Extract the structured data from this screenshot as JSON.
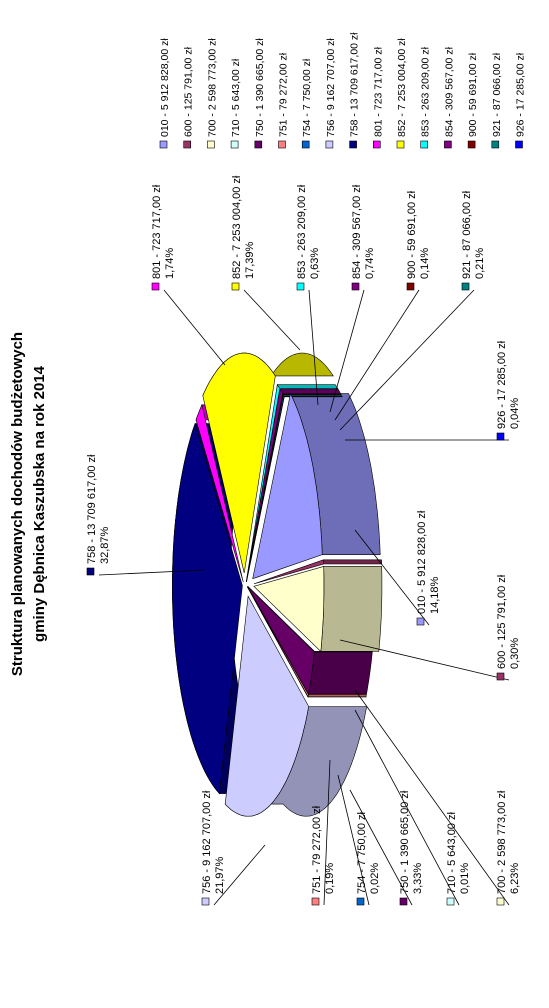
{
  "chart_data": {
    "type": "pie",
    "title_line1": "Struktura planowanych dochodów budżetowych",
    "title_line2": "gminy Dębnica Kaszubska na rok 2014",
    "legend_position": "right",
    "slices": [
      {
        "code": "010",
        "amount": "5 912 828,00 zł",
        "legend": "010 - 5 912 828,00 zł",
        "pct": "14,18%",
        "value": 5912828.0,
        "color": "#9999ff"
      },
      {
        "code": "600",
        "amount": "125 791,00 zł",
        "legend": "600 - 125 791,00 zł",
        "pct": "0,30%",
        "value": 125791.0,
        "color": "#993366"
      },
      {
        "code": "700",
        "amount": "2 598 773,00 zł",
        "legend": "700 - 2 598 773,00 zł",
        "pct": "6,23%",
        "value": 2598773.0,
        "color": "#ffffcc"
      },
      {
        "code": "710",
        "amount": "5 643,00 zł",
        "legend": "710 - 5 643,00 zł",
        "pct": "0,01%",
        "value": 5643.0,
        "color": "#ccffff"
      },
      {
        "code": "750",
        "amount": "1 390 665,00 zł",
        "legend": "750 - 1 390 665,00 zł",
        "pct": "3,33%",
        "value": 1390665.0,
        "color": "#660066"
      },
      {
        "code": "751",
        "amount": "79 272,00 zł",
        "legend": "751 - 79 272,00 zł",
        "pct": "0,19%",
        "value": 79272.0,
        "color": "#ff8080"
      },
      {
        "code": "754",
        "amount": "7 750,00 zł",
        "legend": "754 - 7 750,00 zł",
        "pct": "0,02%",
        "value": 7750.0,
        "color": "#0066cc"
      },
      {
        "code": "756",
        "amount": "9 162 707,00 zł",
        "legend": "756 - 9 162 707,00 zł",
        "pct": "21,97%",
        "value": 9162707.0,
        "color": "#ccccff"
      },
      {
        "code": "758",
        "amount": "13 709 617,00 zł",
        "legend": "758 - 13 709 617,00 zł",
        "pct": "32,87%",
        "value": 13709617.0,
        "color": "#000080"
      },
      {
        "code": "801",
        "amount": "723 717,00 zł",
        "legend": "801 - 723 717,00 zł",
        "pct": "1,74%",
        "value": 723717.0,
        "color": "#ff00ff"
      },
      {
        "code": "852",
        "amount": "7 253 004,00 zł",
        "legend": "852 - 7 253 004,00 zł",
        "pct": "17,39%",
        "value": 7253004.0,
        "color": "#ffff00"
      },
      {
        "code": "853",
        "amount": "263 209,00 zł",
        "legend": "853 - 263 209,00 zł",
        "pct": "0,63%",
        "value": 263209.0,
        "color": "#00ffff"
      },
      {
        "code": "854",
        "amount": "309 567,00 zł",
        "legend": "854 - 309 567,00 zł",
        "pct": "0,74%",
        "value": 309567.0,
        "color": "#800080"
      },
      {
        "code": "900",
        "amount": "59 691,00 zł",
        "legend": "900 - 59 691,00 zł",
        "pct": "0,14%",
        "value": 59691.0,
        "color": "#800000"
      },
      {
        "code": "921",
        "amount": "87 066,00 zł",
        "legend": "921 - 87 066,00 zł",
        "pct": "0,21%",
        "value": 87066.0,
        "color": "#008080"
      },
      {
        "code": "926",
        "amount": "17 285,00 zł",
        "legend": "926 - 17 285,00 zł",
        "pct": "0,04%",
        "value": 17285.0,
        "color": "#0000ff"
      }
    ]
  }
}
